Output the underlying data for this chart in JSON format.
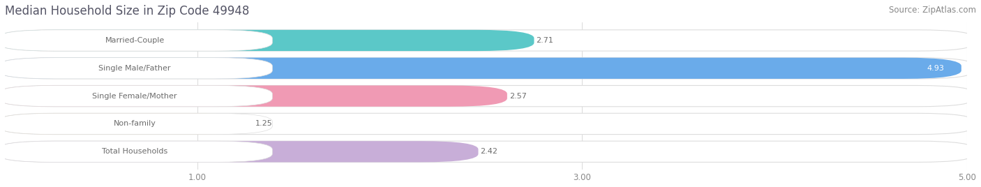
{
  "title": "Median Household Size in Zip Code 49948",
  "source": "Source: ZipAtlas.com",
  "categories": [
    "Married-Couple",
    "Single Male/Father",
    "Single Female/Mother",
    "Non-family",
    "Total Households"
  ],
  "values": [
    2.71,
    4.93,
    2.57,
    1.25,
    2.42
  ],
  "bar_colors": [
    "#5bc8c8",
    "#6aabea",
    "#f09ab4",
    "#f5d5a0",
    "#c8aed8"
  ],
  "label_text_color": "#6b6b6b",
  "value_colors": [
    "#6b6b6b",
    "#ffffff",
    "#6b6b6b",
    "#6b6b6b",
    "#6b6b6b"
  ],
  "xlim_min": 0,
  "xlim_max": 5.0,
  "xticks": [
    1.0,
    3.0,
    5.0
  ],
  "xtick_labels": [
    "1.00",
    "3.00",
    "5.00"
  ],
  "background_color": "#ffffff",
  "bar_bg_color": "#eeeeee",
  "bar_border_color": "#dddddd",
  "title_fontsize": 12,
  "source_fontsize": 8.5,
  "label_fontsize": 8,
  "value_fontsize": 8,
  "tick_fontsize": 8.5,
  "bar_height": 0.68,
  "bar_gap": 1.0
}
